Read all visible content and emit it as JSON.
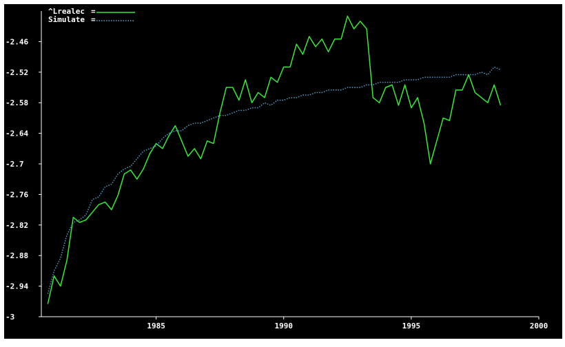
{
  "chart_data": {
    "type": "line",
    "xlim": [
      1980.5,
      2000
    ],
    "ylim": [
      -3,
      -2.4
    ],
    "x_ticks": [
      1985,
      1990,
      1995,
      2000
    ],
    "y_ticks": [
      -2.46,
      -2.52,
      -2.58,
      -2.64,
      -2.7,
      -2.76,
      -2.82,
      -2.88,
      -2.94,
      -3
    ],
    "x_tick_labels": [
      "1985",
      "1990",
      "1995",
      "2000"
    ],
    "y_tick_labels": [
      "-2.46",
      "-2.52",
      "-2.58",
      "-2.64",
      "-2.7",
      "-2.76",
      "-2.82",
      "-2.88",
      "-2.94",
      "-3"
    ],
    "grid": false,
    "legend_position": "top-left",
    "series": [
      {
        "name": "^Lrealec",
        "color": "#33ee33",
        "style": "solid",
        "x": [
          1980.75,
          1981.0,
          1981.25,
          1981.5,
          1981.75,
          1982.0,
          1982.25,
          1982.5,
          1982.75,
          1983.0,
          1983.25,
          1983.5,
          1983.75,
          1984.0,
          1984.25,
          1984.5,
          1984.75,
          1985.0,
          1985.25,
          1985.5,
          1985.75,
          1986.0,
          1986.25,
          1986.5,
          1986.75,
          1987.0,
          1987.25,
          1987.5,
          1987.75,
          1988.0,
          1988.25,
          1988.5,
          1988.75,
          1989.0,
          1989.25,
          1989.5,
          1989.75,
          1990.0,
          1990.25,
          1990.5,
          1990.75,
          1991.0,
          1991.25,
          1991.5,
          1991.75,
          1992.0,
          1992.25,
          1992.5,
          1992.75,
          1993.0,
          1993.25,
          1993.5,
          1993.75,
          1994.0,
          1994.25,
          1994.5,
          1994.75,
          1995.0,
          1995.25,
          1995.5,
          1995.75,
          1996.0,
          1996.25,
          1996.5,
          1996.75,
          1997.0,
          1997.25,
          1997.5,
          1997.75,
          1998.0,
          1998.25,
          1998.5
        ],
        "y": [
          -2.975,
          -2.92,
          -2.94,
          -2.89,
          -2.805,
          -2.815,
          -2.81,
          -2.795,
          -2.78,
          -2.775,
          -2.79,
          -2.762,
          -2.72,
          -2.712,
          -2.73,
          -2.71,
          -2.68,
          -2.66,
          -2.67,
          -2.645,
          -2.625,
          -2.655,
          -2.685,
          -2.67,
          -2.69,
          -2.655,
          -2.66,
          -2.6,
          -2.55,
          -2.55,
          -2.575,
          -2.535,
          -2.58,
          -2.56,
          -2.57,
          -2.53,
          -2.54,
          -2.51,
          -2.51,
          -2.465,
          -2.485,
          -2.45,
          -2.47,
          -2.455,
          -2.48,
          -2.455,
          -2.455,
          -2.41,
          -2.435,
          -2.42,
          -2.435,
          -2.57,
          -2.58,
          -2.55,
          -2.545,
          -2.585,
          -2.545,
          -2.59,
          -2.57,
          -2.62,
          -2.7,
          -2.655,
          -2.61,
          -2.615,
          -2.555,
          -2.555,
          -2.525,
          -2.56,
          -2.57,
          -2.58,
          -2.545,
          -2.585
        ]
      },
      {
        "name": "Simulate",
        "color": "#55aadd",
        "style": "dotted",
        "x": [
          1980.75,
          1981.0,
          1981.25,
          1981.5,
          1981.75,
          1982.0,
          1982.25,
          1982.5,
          1982.75,
          1983.0,
          1983.25,
          1983.5,
          1983.75,
          1984.0,
          1984.25,
          1984.5,
          1984.75,
          1985.0,
          1985.25,
          1985.5,
          1985.75,
          1986.0,
          1986.25,
          1986.5,
          1986.75,
          1987.0,
          1987.25,
          1987.5,
          1987.75,
          1988.0,
          1988.25,
          1988.5,
          1988.75,
          1989.0,
          1989.25,
          1989.5,
          1989.75,
          1990.0,
          1990.25,
          1990.5,
          1990.75,
          1991.0,
          1991.25,
          1991.5,
          1991.75,
          1992.0,
          1992.25,
          1992.5,
          1992.75,
          1993.0,
          1993.25,
          1993.5,
          1993.75,
          1994.0,
          1994.25,
          1994.5,
          1994.75,
          1995.0,
          1995.25,
          1995.5,
          1995.75,
          1996.0,
          1996.25,
          1996.5,
          1996.75,
          1997.0,
          1997.25,
          1997.5,
          1997.75,
          1998.0,
          1998.25,
          1998.5
        ],
        "y": [
          -2.955,
          -2.91,
          -2.885,
          -2.84,
          -2.815,
          -2.81,
          -2.8,
          -2.77,
          -2.765,
          -2.745,
          -2.74,
          -2.72,
          -2.71,
          -2.705,
          -2.69,
          -2.675,
          -2.67,
          -2.665,
          -2.65,
          -2.64,
          -2.635,
          -2.635,
          -2.625,
          -2.62,
          -2.62,
          -2.615,
          -2.61,
          -2.605,
          -2.605,
          -2.6,
          -2.595,
          -2.595,
          -2.59,
          -2.59,
          -2.58,
          -2.585,
          -2.575,
          -2.575,
          -2.57,
          -2.57,
          -2.565,
          -2.565,
          -2.56,
          -2.56,
          -2.555,
          -2.555,
          -2.555,
          -2.55,
          -2.55,
          -2.55,
          -2.545,
          -2.545,
          -2.54,
          -2.54,
          -2.54,
          -2.54,
          -2.535,
          -2.535,
          -2.535,
          -2.53,
          -2.53,
          -2.53,
          -2.53,
          -2.53,
          -2.525,
          -2.525,
          -2.525,
          -2.525,
          -2.52,
          -2.525,
          -2.51,
          -2.515
        ]
      }
    ]
  }
}
